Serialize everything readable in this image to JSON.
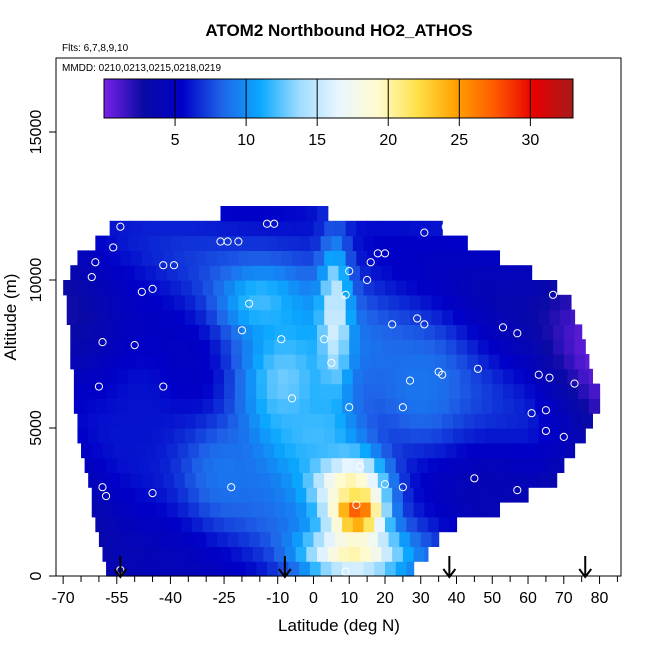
{
  "chart_data": {
    "type": "heatmap",
    "title": "ATOM2 Northbound HO2_ATHOS",
    "subtitle_flights": "Flts: 6,7,8,9,10",
    "subtitle_dates": "MMDD: 0210,0213,0215,0218,0219",
    "xlabel": "Latitude (deg N)",
    "ylabel": "Altitude (m)",
    "xlim": [
      -72,
      86
    ],
    "ylim": [
      0,
      17500
    ],
    "x_ticks": [
      -70,
      -55,
      -40,
      -25,
      -10,
      0,
      10,
      20,
      30,
      40,
      50,
      60,
      70,
      80
    ],
    "x_minor_ticks": [
      -65,
      -60,
      -50,
      -45,
      -35,
      -30,
      -20,
      -15,
      -5,
      5,
      15,
      25,
      35,
      45,
      55,
      65,
      75,
      85
    ],
    "y_ticks": [
      0,
      5000,
      10000,
      15000
    ],
    "grid": false,
    "colorbar": {
      "range": [
        0,
        33
      ],
      "ticks": [
        5,
        10,
        15,
        20,
        25,
        30
      ],
      "colors": [
        "#7a22e8",
        "#0a0aa5",
        "#0000c8",
        "#1f63e8",
        "#0aa8ff",
        "#9fdcff",
        "#eaf6ff",
        "#fffbcf",
        "#ffe24a",
        "#ffa200",
        "#ff5a00",
        "#e80000",
        "#a51b1b"
      ]
    },
    "section": {
      "x_range": [
        -70,
        85
      ],
      "altitude_levels": [
        250,
        750,
        1250,
        1750,
        2250,
        2750,
        3250,
        3750,
        4250,
        4750,
        5250,
        5750,
        6250,
        6750,
        7250,
        7750,
        8250,
        8750,
        9250,
        9750,
        10250,
        10750,
        11250,
        11750,
        12250
      ],
      "extent_lat": [
        [
          -58,
          28
        ],
        [
          -59,
          32
        ],
        [
          -60,
          35
        ],
        [
          -61,
          40
        ],
        [
          -62,
          52
        ],
        [
          -62,
          60
        ],
        [
          -63,
          68
        ],
        [
          -64,
          70
        ],
        [
          -65,
          73
        ],
        [
          -66,
          76
        ],
        [
          -66,
          78
        ],
        [
          -67,
          80
        ],
        [
          -67,
          80
        ],
        [
          -67,
          78
        ],
        [
          -68,
          77
        ],
        [
          -68,
          76
        ],
        [
          -68,
          75
        ],
        [
          -69,
          73
        ],
        [
          -69,
          72
        ],
        [
          -70,
          68
        ],
        [
          -68,
          61
        ],
        [
          -66,
          52
        ],
        [
          -61,
          43
        ],
        [
          -57,
          36
        ],
        [
          -26,
          4
        ]
      ],
      "features": [
        {
          "lat": 12,
          "alt": 2200,
          "lat_w": 7,
          "alt_w": 900,
          "value": 31
        },
        {
          "lat": 9,
          "alt": 3300,
          "lat_w": 10,
          "alt_w": 1000,
          "value": 22
        },
        {
          "lat": 11,
          "alt": 800,
          "lat_w": 13,
          "alt_w": 800,
          "value": 20
        },
        {
          "lat": -8,
          "alt": 6500,
          "lat_w": 14,
          "alt_w": 2500,
          "value": 13
        },
        {
          "lat": 0,
          "alt": 4800,
          "lat_w": 14,
          "alt_w": 1400,
          "value": 12
        },
        {
          "lat": 6,
          "alt": 8800,
          "lat_w": 4,
          "alt_w": 2300,
          "value": 16
        },
        {
          "lat": -15,
          "alt": 9300,
          "lat_w": 10,
          "alt_w": 1000,
          "value": 12
        },
        {
          "lat": 30,
          "alt": 6300,
          "lat_w": 12,
          "alt_w": 2000,
          "value": 9
        },
        {
          "lat": -48,
          "alt": 5500,
          "lat_w": 14,
          "alt_w": 4000,
          "value": 6
        },
        {
          "lat": -25,
          "alt": 3500,
          "lat_w": 10,
          "alt_w": 1500,
          "value": 9
        },
        {
          "lat": 50,
          "alt": 2800,
          "lat_w": 10,
          "alt_w": 1200,
          "value": 4
        }
      ]
    },
    "sample_points": [
      {
        "lat": -54,
        "alt": 200
      },
      {
        "lat": 9,
        "alt": 150
      },
      {
        "lat": -59,
        "alt": 3000
      },
      {
        "lat": -58,
        "alt": 2700
      },
      {
        "lat": -45,
        "alt": 2800
      },
      {
        "lat": -23,
        "alt": 3000
      },
      {
        "lat": 12,
        "alt": 2400
      },
      {
        "lat": 20,
        "alt": 3100
      },
      {
        "lat": 25,
        "alt": 3000
      },
      {
        "lat": 13,
        "alt": 3700
      },
      {
        "lat": 45,
        "alt": 3300
      },
      {
        "lat": 57,
        "alt": 2900
      },
      {
        "lat": -42,
        "alt": 6400
      },
      {
        "lat": 10,
        "alt": 5700
      },
      {
        "lat": 25,
        "alt": 5700
      },
      {
        "lat": -6,
        "alt": 6000
      },
      {
        "lat": 27,
        "alt": 6600
      },
      {
        "lat": 35,
        "alt": 6900
      },
      {
        "lat": 36,
        "alt": 6800
      },
      {
        "lat": 46,
        "alt": 7000
      },
      {
        "lat": 61,
        "alt": 5500
      },
      {
        "lat": 65,
        "alt": 5600
      },
      {
        "lat": 65,
        "alt": 4900
      },
      {
        "lat": 70,
        "alt": 4700
      },
      {
        "lat": 80,
        "alt": 4100
      },
      {
        "lat": -60,
        "alt": 6400
      },
      {
        "lat": -59,
        "alt": 7900
      },
      {
        "lat": -50,
        "alt": 7800
      },
      {
        "lat": -20,
        "alt": 8300
      },
      {
        "lat": -9,
        "alt": 8000
      },
      {
        "lat": 3,
        "alt": 8000
      },
      {
        "lat": 5,
        "alt": 7200
      },
      {
        "lat": 22,
        "alt": 8500
      },
      {
        "lat": 29,
        "alt": 8700
      },
      {
        "lat": 31,
        "alt": 8500
      },
      {
        "lat": 53,
        "alt": 8400
      },
      {
        "lat": 57,
        "alt": 8200
      },
      {
        "lat": 63,
        "alt": 6800
      },
      {
        "lat": 66,
        "alt": 6700
      },
      {
        "lat": 73,
        "alt": 6500
      },
      {
        "lat": -48,
        "alt": 9600
      },
      {
        "lat": -45,
        "alt": 9700
      },
      {
        "lat": -42,
        "alt": 10500
      },
      {
        "lat": -39,
        "alt": 10500
      },
      {
        "lat": -18,
        "alt": 9200
      },
      {
        "lat": -62,
        "alt": 10100
      },
      {
        "lat": 9,
        "alt": 9500
      },
      {
        "lat": 15,
        "alt": 10000
      },
      {
        "lat": 10,
        "alt": 10300
      },
      {
        "lat": 16,
        "alt": 10600
      },
      {
        "lat": 18,
        "alt": 10900
      },
      {
        "lat": 20,
        "alt": 10900
      },
      {
        "lat": -61,
        "alt": 10600
      },
      {
        "lat": -56,
        "alt": 11100
      },
      {
        "lat": -26,
        "alt": 11300
      },
      {
        "lat": -24,
        "alt": 11300
      },
      {
        "lat": -21,
        "alt": 11300
      },
      {
        "lat": -13,
        "alt": 11900
      },
      {
        "lat": -11,
        "alt": 11900
      },
      {
        "lat": -54,
        "alt": 11800
      },
      {
        "lat": 31,
        "alt": 11600
      },
      {
        "lat": 37,
        "alt": 11800
      },
      {
        "lat": 67,
        "alt": 9500
      },
      {
        "lat": 75,
        "alt": 9400
      }
    ],
    "flight_markers_lat": [
      -54,
      -8,
      38,
      76
    ]
  }
}
